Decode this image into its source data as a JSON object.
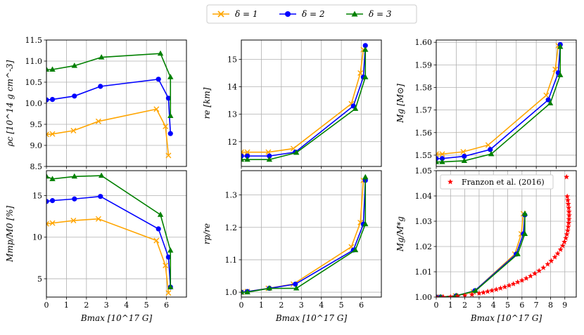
{
  "legend": {
    "entries": [
      {
        "label": "δ = 1",
        "color": "#ffa500",
        "marker": "x"
      },
      {
        "label": "δ = 2",
        "color": "#0000ff",
        "marker": "o"
      },
      {
        "label": "δ = 3",
        "color": "#008000",
        "marker": "^"
      }
    ]
  },
  "chart_data": [
    {
      "type": "line",
      "ylabel": "ρc [10^14 g cm^-3]",
      "xlabel": "",
      "xlim": [
        0,
        7
      ],
      "ylim": [
        8.5,
        11.5
      ],
      "xticks": [
        0,
        1,
        2,
        3,
        4,
        5,
        6
      ],
      "yticks": [
        8.5,
        9.0,
        9.5,
        10.0,
        10.5,
        11.0,
        11.5
      ],
      "ytick_labels": [
        "8.5",
        "9.0",
        "9.5",
        "10.0",
        "10.5",
        "11.0",
        "11.5"
      ],
      "grid": true,
      "series": [
        {
          "name": "δ = 1",
          "x": [
            0,
            0.3,
            1.35,
            2.6,
            5.5,
            5.95,
            6.1
          ],
          "y": [
            9.26,
            9.27,
            9.35,
            9.57,
            9.86,
            9.45,
            8.76
          ]
        },
        {
          "name": "δ = 2",
          "x": [
            0,
            0.3,
            1.4,
            2.7,
            5.6,
            6.1,
            6.2
          ],
          "y": [
            10.08,
            10.09,
            10.17,
            10.4,
            10.57,
            10.12,
            9.28
          ]
        },
        {
          "name": "δ = 3",
          "x": [
            0,
            0.3,
            1.4,
            2.75,
            5.7,
            6.2,
            6.2
          ],
          "y": [
            10.8,
            10.8,
            10.89,
            11.09,
            11.18,
            10.62,
            9.7
          ]
        }
      ]
    },
    {
      "type": "line",
      "ylabel": "re [km]",
      "xlabel": "",
      "xlim": [
        0,
        7
      ],
      "ylim": [
        11.1,
        15.7
      ],
      "xticks": [
        0,
        1,
        2,
        3,
        4,
        5,
        6
      ],
      "yticks": [
        12,
        13,
        14,
        15
      ],
      "ytick_labels": [
        "12",
        "13",
        "14",
        "15"
      ],
      "grid": true,
      "series": [
        {
          "name": "δ = 1",
          "x": [
            0,
            0.3,
            1.35,
            2.6,
            5.5,
            5.95,
            6.1
          ],
          "y": [
            11.62,
            11.62,
            11.62,
            11.75,
            13.38,
            14.5,
            15.35
          ]
        },
        {
          "name": "δ = 2",
          "x": [
            0,
            0.3,
            1.4,
            2.7,
            5.6,
            6.1,
            6.2
          ],
          "y": [
            11.48,
            11.48,
            11.48,
            11.62,
            13.3,
            14.35,
            15.5
          ]
        },
        {
          "name": "δ = 3",
          "x": [
            0,
            0.3,
            1.4,
            2.75,
            5.7,
            6.2,
            6.2
          ],
          "y": [
            11.35,
            11.35,
            11.35,
            11.6,
            13.2,
            14.35,
            15.35
          ]
        }
      ]
    },
    {
      "type": "line",
      "ylabel": "Mg [M⊙]",
      "xlabel": "",
      "xlim": [
        0,
        7
      ],
      "ylim": [
        1.545,
        1.601
      ],
      "xticks": [
        0,
        1,
        2,
        3,
        4,
        5,
        6
      ],
      "yticks": [
        1.55,
        1.56,
        1.57,
        1.58,
        1.59,
        1.6
      ],
      "ytick_labels": [
        "1.55",
        "1.56",
        "1.57",
        "1.58",
        "1.59",
        "1.60"
      ],
      "grid": true,
      "series": [
        {
          "name": "δ = 1",
          "x": [
            0,
            0.3,
            1.35,
            2.6,
            5.5,
            5.95,
            6.1
          ],
          "y": [
            1.5505,
            1.5505,
            1.5515,
            1.5545,
            1.5765,
            1.588,
            1.5985
          ]
        },
        {
          "name": "δ = 2",
          "x": [
            0,
            0.3,
            1.4,
            2.7,
            5.6,
            6.1,
            6.2
          ],
          "y": [
            1.5485,
            1.5485,
            1.5495,
            1.5525,
            1.5745,
            1.5865,
            1.599
          ]
        },
        {
          "name": "δ = 3",
          "x": [
            0,
            0.3,
            1.4,
            2.75,
            5.7,
            6.2,
            6.2
          ],
          "y": [
            1.547,
            1.547,
            1.5475,
            1.5505,
            1.573,
            1.5855,
            1.598
          ]
        }
      ]
    },
    {
      "type": "line",
      "ylabel": "Mmp/M0 [%]",
      "xlabel": "Bmax [10^17 G]",
      "xlim": [
        0,
        7
      ],
      "ylim": [
        2.8,
        18.0
      ],
      "xticks": [
        0,
        1,
        2,
        3,
        4,
        5,
        6
      ],
      "yticks": [
        5,
        10,
        15
      ],
      "ytick_labels": [
        "5",
        "10",
        "15"
      ],
      "grid": true,
      "series": [
        {
          "name": "δ = 1",
          "x": [
            0,
            0.3,
            1.35,
            2.6,
            5.5,
            5.95,
            6.1
          ],
          "y": [
            11.6,
            11.7,
            12.0,
            12.2,
            9.6,
            6.6,
            3.3
          ]
        },
        {
          "name": "δ = 2",
          "x": [
            0,
            0.3,
            1.4,
            2.7,
            5.6,
            6.1,
            6.2
          ],
          "y": [
            14.3,
            14.4,
            14.6,
            14.9,
            11.0,
            7.6,
            4.0
          ]
        },
        {
          "name": "δ = 3",
          "x": [
            0,
            0.3,
            1.4,
            2.75,
            5.7,
            6.2,
            6.2
          ],
          "y": [
            17.3,
            17.0,
            17.3,
            17.4,
            12.7,
            8.4,
            4.0
          ]
        }
      ]
    },
    {
      "type": "line",
      "ylabel": "rp/re",
      "xlabel": "Bmax [10^17 G]",
      "xlim": [
        0,
        7
      ],
      "ylim": [
        0.985,
        1.375
      ],
      "xticks": [
        0,
        1,
        2,
        3,
        4,
        5,
        6
      ],
      "yticks": [
        1.0,
        1.1,
        1.2,
        1.3
      ],
      "ytick_labels": [
        "1.0",
        "1.1",
        "1.2",
        "1.3"
      ],
      "grid": true,
      "series": [
        {
          "name": "δ = 1",
          "x": [
            0,
            0.3,
            1.35,
            2.6,
            5.5,
            5.95,
            6.1
          ],
          "y": [
            1.0,
            1.002,
            1.012,
            1.025,
            1.14,
            1.215,
            1.345
          ]
        },
        {
          "name": "δ = 2",
          "x": [
            0,
            0.3,
            1.4,
            2.7,
            5.6,
            6.1,
            6.2
          ],
          "y": [
            1.0,
            1.002,
            1.012,
            1.025,
            1.13,
            1.21,
            1.345
          ]
        },
        {
          "name": "δ = 3",
          "x": [
            0,
            0.3,
            1.4,
            2.75,
            5.7,
            6.2,
            6.2
          ],
          "y": [
            1.0,
            1.0,
            1.012,
            1.012,
            1.13,
            1.21,
            1.355
          ]
        }
      ]
    },
    {
      "type": "line",
      "ylabel": "Mg/M*g",
      "xlabel": "Bmax [10^17 G]",
      "xlim": [
        0,
        9.8
      ],
      "ylim": [
        1.0,
        1.05
      ],
      "xticks": [
        0,
        1,
        2,
        3,
        4,
        5,
        6,
        7,
        8,
        9
      ],
      "yticks": [
        1.0,
        1.01,
        1.02,
        1.03,
        1.04,
        1.05
      ],
      "ytick_labels": [
        "1.00",
        "1.01",
        "1.02",
        "1.03",
        "1.04",
        "1.05"
      ],
      "grid": true,
      "legend_entry": "Franzon et al. (2016)",
      "series": [
        {
          "name": "δ = 1",
          "x": [
            0,
            0.3,
            1.35,
            2.6,
            5.5,
            5.95,
            6.1
          ],
          "y": [
            1.0,
            1.0,
            1.0005,
            1.002,
            1.017,
            1.025,
            1.033
          ]
        },
        {
          "name": "δ = 2",
          "x": [
            0,
            0.3,
            1.4,
            2.7,
            5.6,
            6.1,
            6.2
          ],
          "y": [
            1.0,
            1.0,
            1.0005,
            1.0025,
            1.017,
            1.025,
            1.0325
          ]
        },
        {
          "name": "δ = 3",
          "x": [
            0,
            0.3,
            1.4,
            2.75,
            5.7,
            6.2,
            6.2
          ],
          "y": [
            1.0,
            1.0,
            1.0005,
            1.0025,
            1.017,
            1.025,
            1.033
          ]
        },
        {
          "name": "Franzon et al. (2016)",
          "x": [
            0.0,
            0.5,
            1.0,
            1.5,
            2.0,
            2.5,
            3.0,
            3.3,
            3.6,
            3.9,
            4.2,
            4.5,
            4.8,
            5.1,
            5.4,
            5.7,
            6.0,
            6.3,
            6.6,
            6.9,
            7.2,
            7.5,
            7.8,
            8.05,
            8.3,
            8.5,
            8.7,
            8.85,
            8.97,
            9.07,
            9.14,
            9.2,
            9.24,
            9.27,
            9.29,
            9.3,
            9.29,
            9.27,
            9.24,
            9.21,
            9.17,
            9.12
          ],
          "y": [
            1.0,
            1.0,
            1.0001,
            1.0003,
            1.0006,
            1.001,
            1.0015,
            1.0018,
            1.0022,
            1.0026,
            1.003,
            1.0035,
            1.004,
            1.0046,
            1.0052,
            1.0059,
            1.0066,
            1.0074,
            1.0083,
            1.0093,
            1.0104,
            1.0116,
            1.013,
            1.0143,
            1.0158,
            1.0172,
            1.0188,
            1.0203,
            1.0218,
            1.0233,
            1.0248,
            1.0263,
            1.0278,
            1.0293,
            1.0308,
            1.0323,
            1.0338,
            1.0353,
            1.0368,
            1.0383,
            1.0398,
            1.0475
          ]
        }
      ]
    }
  ]
}
